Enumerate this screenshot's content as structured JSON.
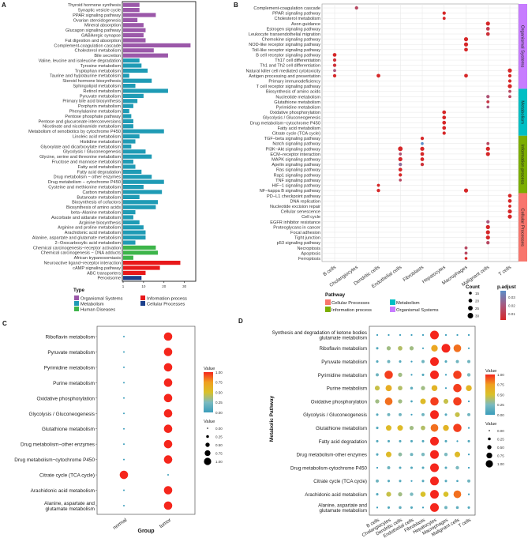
{
  "panels": {
    "a": "A",
    "b": "B",
    "c": "C",
    "d": "D"
  },
  "chart_data": [
    {
      "type": "bar",
      "orientation": "horizontal",
      "categories": [
        "Thyroid hormone synthesis",
        "Synaptic vesicle cycle",
        "PPAR signaling pathway",
        "Ovarian steroidogenesis",
        "Mineral absorption",
        "Glucagon signaling pathway",
        "GABAergic synapse",
        "Fat digestion and absorption",
        "Complement-coagulation cascade",
        "Cholesterol metabolism",
        "Bile secretion",
        "Valine, leucine and isoleucine degradation",
        "Tyrosine metabolism",
        "Tryptophan metabolism",
        "Taurine and hypotaurine metabolism",
        "Steroid hormone biosynthesis",
        "Sphingolipid metabolism",
        "Retinol metabolism",
        "Pyruvate metabolism",
        "Primary bile acid biosynthesis",
        "Porphyrin metabolism",
        "Phenylalanine metabolism",
        "Pentose phosphate pathway",
        "Pentose and glucuronate interconversions",
        "Nicotinate and nicotinamide metabolism",
        "Metabolism of xenobiotics by cytochrome P450",
        "Linoleic acid metabolism",
        "Histidine metabolism",
        "Glyoxylate and dicarboxylate metabolism",
        "Glycolysis / Gluconeogenesis",
        "Glycine, serine and threonine metabolism",
        "Fructose and mannose metabolism",
        "Fatty acid metabolism",
        "Fatty acid degradation",
        "Drug metabolism − other enzymes",
        "Drug metabolism − cytochrome P450",
        "Cysteine and methionine metabolism",
        "Carbon metabolism",
        "Butanoate metabolism",
        "Biosynthesis of cofactors",
        "Biosynthesis of amino acids",
        "beta−Alanine metabolism",
        "Ascorbate and aldarate metabolism",
        "Arginine biosynthesis",
        "Arginine and proline metabolism",
        "Arachidonic acid metabolism",
        "Alanine, aspartate and glutamate metabolism",
        "2−Oxocarboxylic acid metabolism",
        "Chemical carcinogenesis−receptor activation",
        "Chemical carcinogenesis − DNA adducts",
        "African trypanosomiasis",
        "Neuroactive ligand−receptor interaction",
        "cAMP signaling pathway",
        "ABC transporters",
        "Peroxisome"
      ],
      "values": [
        8,
        8,
        16,
        7,
        10,
        11,
        10,
        11,
        33,
        15,
        22,
        8,
        9,
        12,
        3,
        14,
        6,
        22,
        10,
        7,
        5,
        3,
        4,
        5,
        5,
        20,
        8,
        6,
        4,
        11,
        14,
        5,
        6,
        9,
        14,
        20,
        10,
        19,
        8,
        17,
        16,
        6,
        5,
        8,
        10,
        11,
        11,
        6,
        16,
        17,
        5,
        28,
        18,
        11,
        9
      ],
      "types": [
        "O",
        "O",
        "O",
        "O",
        "O",
        "O",
        "O",
        "O",
        "O",
        "O",
        "O",
        "M",
        "M",
        "M",
        "M",
        "M",
        "M",
        "M",
        "M",
        "M",
        "M",
        "M",
        "M",
        "M",
        "M",
        "M",
        "M",
        "M",
        "M",
        "M",
        "M",
        "M",
        "M",
        "M",
        "M",
        "M",
        "M",
        "M",
        "M",
        "M",
        "M",
        "M",
        "M",
        "M",
        "M",
        "M",
        "M",
        "M",
        "H",
        "H",
        "H",
        "I",
        "I",
        "I",
        "C"
      ],
      "xlim": [
        0,
        34
      ],
      "xticks": [
        "1",
        "10",
        "20",
        "30"
      ],
      "legend_title": "Type",
      "legend": [
        {
          "key": "O",
          "label": "Organismal Systems",
          "color": "#9b58a9"
        },
        {
          "key": "M",
          "label": "Metabolism",
          "color": "#1f9bb5"
        },
        {
          "key": "H",
          "label": "Human Diseases",
          "color": "#3db54a"
        },
        {
          "key": "I",
          "label": "Information process",
          "color": "#e8191b"
        },
        {
          "key": "C",
          "label": "Cellular Processes",
          "color": "#1b3f8b"
        }
      ]
    },
    {
      "type": "scatter",
      "rows": [
        "Complement-coagulation cascade",
        "PPAR signaling pathway",
        "Cholesterol metabolism",
        "Axon guidance",
        "Estrogen signaling pathway",
        "Leukocyte transendothelial migration",
        "Chemokine signaling pathway",
        "NOD-like receptor signaling pathway",
        "Toll-like receptor signaling pathway",
        "B cell receptor signaling pathway",
        "Th17 cell differentiation",
        "Th1 and Th2 cell differentiation",
        "Natural killer cell mediated cytotoxicity",
        "Antigen processing and presentation",
        "Primary immunodeficiency",
        "T cell receptor signaling pathway",
        "Biosynthesis of amino acids",
        "Nucleotide metabolism",
        "Glutathione metabolism",
        "Pyrimidine metabolism",
        "Oxidative phosphorylation",
        "Glycolysis / Gluconeogenesis",
        "Drug metabolism−cytochrome P450",
        "Fatty acid metabolism",
        "Citrate cycle (TCA cycle)",
        "TGF−beta signaling pathway",
        "Notch signaling pathway",
        "PI3K−Akt signaling pathway",
        "ECM−receptor interaction",
        "MAPK signaling pathway",
        "Apelin signaling pathway",
        "Ras signaling pathway",
        "Rap1 signaling pathway",
        "TNF signaling pathway",
        "HIF−1 signaling pathway",
        "NF−kappa B signaling pathway",
        "PD−L1 checkpoint pathway",
        "DNA replication",
        "Nucleotide excision repair",
        "Cellular senescence",
        "Cell cycle",
        "EGFR inhibitor resistance",
        "Proteoglycans in cancer",
        "Focal adhesion",
        "Tight junction",
        "p53 signaling pathway",
        "Necroptosis",
        "Apoptosis",
        "Ferroptosis"
      ],
      "columns": [
        "B cells",
        "Cholangiocytes",
        "Dendritic cells",
        "Endothelial cells",
        "Fibroblasts",
        "Hepatocytes",
        "Macrophages",
        "Malignant cells",
        "T cells"
      ],
      "points_fields": [
        "row",
        "col",
        "count",
        "p_adjust"
      ],
      "points": [
        [
          0,
          1,
          18,
          0.015
        ],
        [
          1,
          5,
          18,
          0.005
        ],
        [
          2,
          5,
          16,
          0.005
        ],
        [
          3,
          7,
          22,
          0.005
        ],
        [
          4,
          7,
          20,
          0.012
        ],
        [
          5,
          7,
          20,
          0.008
        ],
        [
          6,
          6,
          22,
          0.005
        ],
        [
          7,
          6,
          22,
          0.005
        ],
        [
          8,
          6,
          20,
          0.005
        ],
        [
          9,
          0,
          20,
          0.005
        ],
        [
          10,
          0,
          18,
          0.008
        ],
        [
          11,
          0,
          18,
          0.008
        ],
        [
          12,
          0,
          16,
          0.02
        ],
        [
          13,
          0,
          18,
          0.005
        ],
        [
          13,
          2,
          20,
          0.005
        ],
        [
          13,
          6,
          20,
          0.005
        ],
        [
          12,
          8,
          22,
          0.005
        ],
        [
          13,
          8,
          18,
          0.005
        ],
        [
          14,
          8,
          18,
          0.005
        ],
        [
          15,
          8,
          22,
          0.005
        ],
        [
          16,
          8,
          16,
          0.015
        ],
        [
          17,
          8,
          16,
          0.015
        ],
        [
          17,
          7,
          18,
          0.018
        ],
        [
          18,
          7,
          16,
          0.01
        ],
        [
          19,
          7,
          15,
          0.02
        ],
        [
          20,
          5,
          20,
          0.005
        ],
        [
          21,
          5,
          20,
          0.005
        ],
        [
          22,
          5,
          20,
          0.005
        ],
        [
          23,
          5,
          20,
          0.005
        ],
        [
          24,
          5,
          18,
          0.005
        ],
        [
          25,
          4,
          18,
          0.005
        ],
        [
          26,
          4,
          15,
          0.035
        ],
        [
          26,
          7,
          16,
          0.015
        ],
        [
          27,
          3,
          25,
          0.005
        ],
        [
          27,
          4,
          22,
          0.005
        ],
        [
          27,
          7,
          22,
          0.005
        ],
        [
          28,
          3,
          16,
          0.018
        ],
        [
          28,
          4,
          20,
          0.005
        ],
        [
          28,
          7,
          22,
          0.005
        ],
        [
          29,
          3,
          22,
          0.005
        ],
        [
          29,
          4,
          20,
          0.005
        ],
        [
          30,
          3,
          18,
          0.025
        ],
        [
          30,
          4,
          18,
          0.008
        ],
        [
          31,
          3,
          20,
          0.005
        ],
        [
          32,
          3,
          18,
          0.005
        ],
        [
          33,
          3,
          15,
          0.015
        ],
        [
          34,
          2,
          16,
          0.005
        ],
        [
          35,
          2,
          18,
          0.005
        ],
        [
          35,
          6,
          22,
          0.005
        ],
        [
          36,
          8,
          20,
          0.005
        ],
        [
          37,
          8,
          20,
          0.005
        ],
        [
          38,
          8,
          16,
          0.005
        ],
        [
          39,
          8,
          22,
          0.005
        ],
        [
          40,
          8,
          22,
          0.005
        ],
        [
          41,
          7,
          18,
          0.02
        ],
        [
          42,
          7,
          22,
          0.005
        ],
        [
          43,
          7,
          22,
          0.005
        ],
        [
          44,
          7,
          22,
          0.005
        ],
        [
          45,
          7,
          18,
          0.015
        ],
        [
          46,
          6,
          16,
          0.015
        ],
        [
          47,
          6,
          16,
          0.015
        ],
        [
          48,
          6,
          15,
          0.005
        ]
      ],
      "strips": [
        {
          "label": "Organismal Systems",
          "from": 0,
          "to": 15,
          "color": "#c77cff"
        },
        {
          "label": "Metabolism",
          "from": 16,
          "to": 24,
          "color": "#00bfc4"
        },
        {
          "label": "Information process",
          "from": 25,
          "to": 35,
          "color": "#7cae00"
        },
        {
          "label": "Cellular Processes",
          "from": 36,
          "to": 48,
          "color": "#f8766d"
        }
      ],
      "pathway_legend_title": "Pathway",
      "pathway_legend": [
        {
          "label": "Cellular Processes",
          "color": "#f8766d"
        },
        {
          "label": "Information process",
          "color": "#7cae00"
        },
        {
          "label": "Metabolism",
          "color": "#00bfc4"
        },
        {
          "label": "Organismal Systems",
          "color": "#c77cff"
        }
      ],
      "count_legend_title": "Count",
      "count_legend": [
        15,
        20,
        25,
        30
      ],
      "padj_legend_title": "p.adjust",
      "padj_legend": [
        "0.03",
        "0.02",
        "0.01"
      ]
    },
    {
      "type": "scatter",
      "rows": [
        "Riboflavin metabolism",
        "Pyruvate metabolism",
        "Pyrimidine metabolism",
        "Purine metabolism",
        "Oxidative phosphorylation",
        "Glycolysis / Gluconeogenesis",
        "Glutathione metabolism",
        "Drug metabolism−other enzymes",
        "Drug metabolism−cytochrome P450",
        "Citrate cycle (TCA cycle)",
        "Arachidonic acid metabolism",
        "Alanine, aspartate and glutamate metabolism"
      ],
      "columns": [
        "normal",
        "tumor"
      ],
      "values": [
        [
          0,
          1
        ],
        [
          0,
          1
        ],
        [
          0,
          1
        ],
        [
          0,
          1
        ],
        [
          0,
          1
        ],
        [
          0,
          1
        ],
        [
          0,
          1
        ],
        [
          0,
          1
        ],
        [
          0,
          1
        ],
        [
          1,
          0
        ],
        [
          0,
          1
        ],
        [
          0,
          1
        ]
      ],
      "xlabel": "Group",
      "color_legend_title": "Value",
      "size_legend_title": "Value",
      "legend_ticks": [
        "1.00",
        "0.75",
        "0.50",
        "0.25",
        "0.00"
      ],
      "size_ticks": [
        "0.00",
        "0.25",
        "0.50",
        "0.75",
        "1.00"
      ]
    },
    {
      "type": "scatter",
      "rows": [
        "Synthesis and degradation of ketone bodies",
        "Riboflavin metabolism",
        "Pyruvate metabolism",
        "Pyrimidine metabolism",
        "Purine metabolism",
        "Oxidative phosphorylation",
        "Glycolysis / Gluconeogenesis",
        "Glutathione metabolism",
        "Fatty acid degradation",
        "Drug metabolism-other enzymes",
        "Drug metabolism-cytochrome P450",
        "Citrate cycle (TCA cycle)",
        "Arachidonic acid metabolism",
        "Alanine, aspartate and glutamate metabolism"
      ],
      "columns": [
        "B cells",
        "Cholangiocytes",
        "Dendritic cells",
        "Endothelial cells",
        "Fibroblasts",
        "Hepatocytes",
        "Macrophages",
        "Malignant cells",
        "T cells"
      ],
      "values": [
        [
          0,
          0,
          0,
          0,
          0,
          1,
          0,
          0,
          0
        ],
        [
          0.1,
          0.35,
          0.4,
          0.35,
          0,
          0.7,
          1,
          0.85,
          0
        ],
        [
          0.1,
          0.2,
          0.1,
          0,
          0.2,
          1,
          0.1,
          0.2,
          0.2
        ],
        [
          0.2,
          0.95,
          0.35,
          0,
          0.1,
          1,
          0,
          0.95,
          0.25
        ],
        [
          0.45,
          0.65,
          0.4,
          0.15,
          0.35,
          0.6,
          0,
          0.95,
          0.6
        ],
        [
          0.35,
          0.85,
          0.35,
          0.05,
          0.55,
          0.95,
          0.45,
          0.95,
          0
        ],
        [
          0.1,
          0.2,
          0.2,
          0,
          0.2,
          1,
          0.1,
          0.45,
          0.2
        ],
        [
          0.1,
          0.55,
          0.55,
          0.35,
          0.4,
          0.85,
          0.6,
          0.95,
          0
        ],
        [
          0.1,
          0.1,
          0.1,
          0.1,
          0.1,
          1,
          0.1,
          0,
          0.1
        ],
        [
          0.1,
          0.55,
          0.3,
          0.2,
          0.25,
          1,
          0.25,
          0.55,
          0
        ],
        [
          0,
          0.2,
          0.1,
          0.1,
          0.1,
          1,
          0.1,
          0.25,
          0
        ],
        [
          0.2,
          0.1,
          0.1,
          0,
          0.1,
          1,
          0.1,
          0.05,
          0.2
        ],
        [
          0.1,
          0.45,
          0.35,
          0.25,
          0.5,
          1,
          0.5,
          0.85,
          0
        ],
        [
          0,
          0.1,
          0.15,
          0.1,
          0,
          1,
          0.2,
          0.15,
          0.1
        ]
      ],
      "ylabel": "Metabolic Pathway",
      "color_legend_title": "Value",
      "size_legend_title": "Value",
      "legend_ticks": [
        "1.00",
        "0.75",
        "0.50",
        "0.25",
        "0.00"
      ],
      "size_ticks": [
        "0.00",
        "0.25",
        "0.50",
        "0.75",
        "1.00"
      ]
    }
  ]
}
